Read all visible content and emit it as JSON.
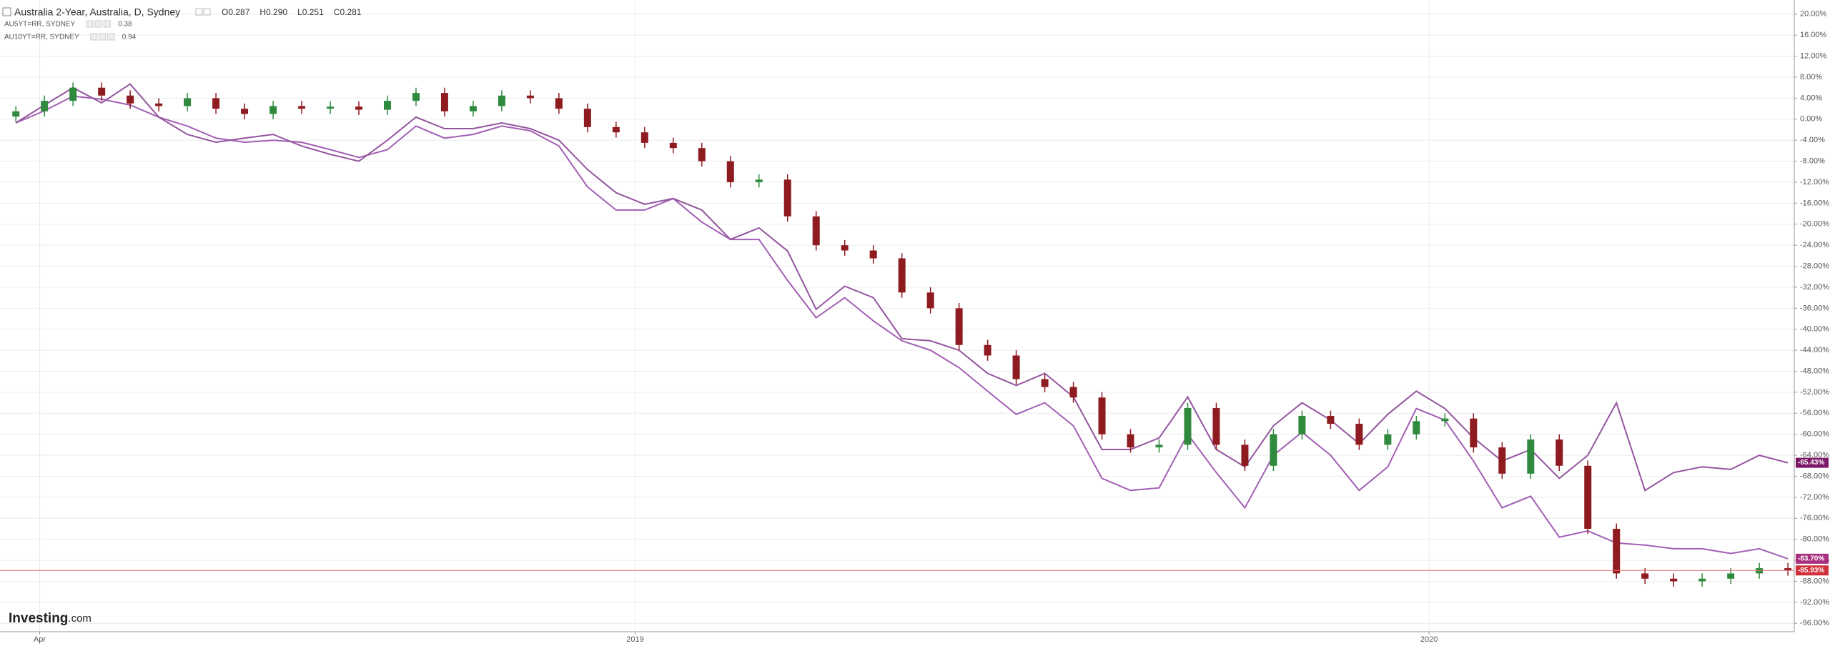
{
  "chart_data": {
    "type": "candlestick",
    "title": "Australia 2-Year, Australia, D, Sydney",
    "ohlc_labels": [
      "O0.287",
      "H0.290",
      "L0.251",
      "C0.281"
    ],
    "brand": "Investing",
    "brand_suffix": ".com",
    "up_color": "#2f8a3e",
    "down_color": "#8e1b1f",
    "price_line_color": "#e07070",
    "last_value_label": "-85.93%",
    "last_label_color": "#d0303c",
    "grid": true,
    "xlim": [
      2018.2,
      2020.46
    ],
    "ylim": [
      -97.6,
      22.7
    ],
    "xticks": [
      {
        "value": 2018.25,
        "label": "Apr"
      },
      2019,
      2020
    ],
    "yticks": [
      {
        "value": 20,
        "label": "20.00%"
      },
      {
        "value": 16,
        "label": "16.00%"
      },
      {
        "value": 12,
        "label": "12.00%"
      },
      {
        "value": 8,
        "label": "8.00%"
      },
      {
        "value": 4,
        "label": "4.00%"
      },
      {
        "value": 0,
        "label": "0.00%"
      },
      {
        "value": -4,
        "label": "-4.00%"
      },
      {
        "value": -8,
        "label": "-8.00%"
      },
      {
        "value": -12,
        "label": "-12.00%"
      },
      {
        "value": -16,
        "label": "-16.00%"
      },
      {
        "value": -20,
        "label": "-20.00%"
      },
      {
        "value": -24,
        "label": "-24.00%"
      },
      {
        "value": -28,
        "label": "-28.00%"
      },
      {
        "value": -32,
        "label": "-32.00%"
      },
      {
        "value": -36,
        "label": "-36.00%"
      },
      {
        "value": -40,
        "label": "-40.00%"
      },
      {
        "value": -44,
        "label": "-44.00%"
      },
      {
        "value": -48,
        "label": "-48.00%"
      },
      {
        "value": -52,
        "label": "-52.00%"
      },
      {
        "value": -56,
        "label": "-56.00%"
      },
      {
        "value": -60,
        "label": "-60.00%"
      },
      {
        "value": -64,
        "label": "-64.00%"
      },
      {
        "value": -68,
        "label": "-68.00%"
      },
      {
        "value": -72,
        "label": "-72.00%"
      },
      {
        "value": -76,
        "label": "-76.00%"
      },
      {
        "value": -80,
        "label": "-80.00%"
      },
      {
        "value": -84,
        "label": "-84.00%"
      },
      {
        "value": -88,
        "label": "-88.00%"
      },
      {
        "value": -92,
        "label": "-92.00%"
      },
      {
        "value": -96,
        "label": "-96.00%"
      }
    ],
    "x": [
      2018.22,
      2018.256,
      2018.292,
      2018.328,
      2018.364,
      2018.4,
      2018.436,
      2018.472,
      2018.508,
      2018.544,
      2018.58,
      2018.616,
      2018.652,
      2018.688,
      2018.724,
      2018.76,
      2018.796,
      2018.832,
      2018.868,
      2018.904,
      2018.94,
      2018.976,
      2019.012,
      2019.048,
      2019.084,
      2019.12,
      2019.156,
      2019.192,
      2019.228,
      2019.264,
      2019.3,
      2019.336,
      2019.372,
      2019.408,
      2019.444,
      2019.48,
      2019.516,
      2019.552,
      2019.588,
      2019.624,
      2019.66,
      2019.696,
      2019.732,
      2019.768,
      2019.804,
      2019.84,
      2019.876,
      2019.912,
      2019.948,
      2019.984,
      2020.02,
      2020.056,
      2020.092,
      2020.128,
      2020.164,
      2020.2,
      2020.236,
      2020.272,
      2020.308,
      2020.344,
      2020.38,
      2020.416,
      2020.452
    ],
    "open": [
      0.5,
      1.5,
      3.5,
      6.0,
      4.5,
      3.0,
      2.5,
      4.0,
      2.0,
      1.0,
      2.5,
      2.0,
      2.4,
      1.8,
      3.5,
      5.0,
      1.5,
      2.5,
      4.5,
      4.0,
      2.0,
      -1.5,
      -2.5,
      -4.5,
      -5.5,
      -8.0,
      -12.0,
      -11.5,
      -18.5,
      -24.0,
      -25.0,
      -26.5,
      -33.0,
      -36.0,
      -43.0,
      -45.0,
      -49.5,
      -51.0,
      -53.0,
      -60.0,
      -62.5,
      -62.0,
      -55.0,
      -62.0,
      -66.0,
      -60.0,
      -56.5,
      -58.0,
      -62.0,
      -60.0,
      -57.5,
      -57.0,
      -62.5,
      -67.5,
      -61.0,
      -66.0,
      -78.0,
      -86.5,
      -87.5,
      -88.0,
      -87.5,
      -86.5,
      -85.5
    ],
    "high": [
      2.5,
      4.5,
      7,
      7,
      5.5,
      4,
      5,
      5,
      3,
      3.5,
      3.5,
      3.4,
      3.4,
      4.5,
      6,
      6,
      3.5,
      5.5,
      5.5,
      5,
      3,
      -0.5,
      -1.5,
      -3.5,
      -4.5,
      -7,
      -10.5,
      -10.5,
      -17.5,
      -23,
      -24,
      -25.5,
      -32,
      -35,
      -42,
      -44,
      -48.5,
      -50,
      -52,
      -59,
      -61,
      -54,
      -54,
      -61,
      -59,
      -55.5,
      -55.5,
      -57,
      -59,
      -56.5,
      -56,
      -56,
      -61.5,
      -60,
      -60,
      -65,
      -77,
      -85.5,
      -86.5,
      -86.5,
      -85.5,
      -84.5,
      -84.5
    ],
    "low": [
      -0.5,
      0.5,
      2.5,
      3.5,
      2,
      1.5,
      1.5,
      1,
      0,
      0,
      1,
      1,
      0.8,
      0.8,
      2.5,
      0.5,
      0.5,
      1.5,
      3,
      1,
      -2.5,
      -3.5,
      -5.5,
      -6.5,
      -9,
      -13,
      -13,
      -19.5,
      -25,
      -26,
      -27.5,
      -34,
      -37,
      -44,
      -46,
      -50.5,
      -52,
      -54,
      -61,
      -63.5,
      -63.5,
      -63,
      -63,
      -67,
      -67,
      -61,
      -59,
      -63,
      -63,
      -61,
      -58.5,
      -63.5,
      -68.5,
      -68.5,
      -67,
      -79,
      -87.5,
      -88.5,
      -89,
      -89,
      -88.5,
      -87.5,
      -86.93
    ],
    "close": [
      1.5,
      3.5,
      6.0,
      4.5,
      3.0,
      2.5,
      4.0,
      2.0,
      1.0,
      2.5,
      2.0,
      2.4,
      1.8,
      3.5,
      5.0,
      1.5,
      2.5,
      4.5,
      4.0,
      2.0,
      -1.5,
      -2.5,
      -4.5,
      -5.5,
      -8.0,
      -12.0,
      -11.5,
      -18.5,
      -24.0,
      -25.0,
      -26.5,
      -33.0,
      -36.0,
      -43.0,
      -45.0,
      -49.5,
      -51.0,
      -53.0,
      -60.0,
      -62.5,
      -62.0,
      -55.0,
      -62.0,
      -66.0,
      -60.0,
      -56.5,
      -58.0,
      -62.0,
      -60.0,
      -57.5,
      -57.0,
      -62.5,
      -67.5,
      -61.0,
      -66.0,
      -78.0,
      -86.5,
      -87.5,
      -88.0,
      -87.5,
      -86.5,
      -85.5,
      -85.93
    ],
    "series": [
      {
        "name": "AU5YT=RR, SYDNEY",
        "legend_value": "0.38",
        "color": "#a35fb5",
        "label_color": "#a8307f",
        "last_value_label": "-83.70%",
        "values": [
          -0.7,
          1.6,
          4.4,
          3.8,
          2.7,
          0.4,
          -1.3,
          -3.6,
          -4.4,
          -4.0,
          -4.4,
          -5.8,
          -7.3,
          -5.8,
          -1.3,
          -3.6,
          -2.9,
          -1.3,
          -2.2,
          -5.1,
          -12.9,
          -17.3,
          -17.3,
          -15.1,
          -19.6,
          -22.9,
          -22.9,
          -30.7,
          -37.8,
          -34.0,
          -38.4,
          -42.2,
          -44.0,
          -47.3,
          -51.8,
          -56.2,
          -54.0,
          -58.4,
          -68.4,
          -70.7,
          -70.2,
          -60.0,
          -67.3,
          -74.0,
          -64.0,
          -59.6,
          -64.0,
          -70.7,
          -66.2,
          -55.1,
          -57.3,
          -65.1,
          -74.0,
          -71.8,
          -79.6,
          -78.4,
          -80.7,
          -81.1,
          -81.8,
          -81.8,
          -82.7,
          -81.8,
          -83.7
        ]
      },
      {
        "name": "AU10YT=RR, SYDNEY",
        "legend_value": "0.94",
        "color": "#94559f",
        "label_color": "#7d1868",
        "last_value_label": "-65.43%",
        "values": [
          -0.7,
          2.7,
          6.0,
          3.1,
          6.7,
          0.4,
          -2.9,
          -4.4,
          -3.6,
          -2.9,
          -5.1,
          -6.7,
          -8.0,
          -4.0,
          0.4,
          -1.8,
          -1.8,
          -0.7,
          -1.8,
          -4.0,
          -9.6,
          -14.0,
          -16.2,
          -15.1,
          -17.3,
          -22.9,
          -20.7,
          -25.1,
          -36.2,
          -31.8,
          -34.0,
          -41.8,
          -42.2,
          -44.0,
          -48.4,
          -50.7,
          -48.4,
          -52.9,
          -62.9,
          -62.9,
          -60.7,
          -52.9,
          -62.9,
          -66.2,
          -58.4,
          -54.0,
          -57.3,
          -61.8,
          -56.2,
          -51.8,
          -55.1,
          -60.7,
          -65.1,
          -62.9,
          -68.4,
          -64.0,
          -54.0,
          -70.7,
          -67.3,
          -66.2,
          -66.7,
          -64.0,
          -65.43
        ]
      }
    ]
  }
}
